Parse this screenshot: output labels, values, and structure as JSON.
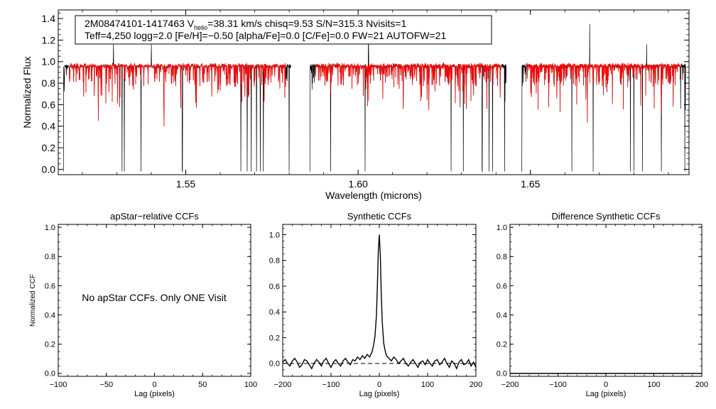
{
  "chart_data": [
    {
      "id": "spectrum",
      "type": "line",
      "info_line1_parts": [
        "2M08474101-1417463  V",
        "helio",
        "=38.31 km/s  chisq=9.53  S/N=315.3  Nvisits=1"
      ],
      "info_line2": "Teff=4,250 logg=2.0 [Fe/H]=−0.50 [alpha/Fe]=0.0 [C/Fe]=0.0 FW=21 AUTOFW=21",
      "xlabel": "Wavelength (microns)",
      "ylabel": "Normalized Flux",
      "xlim": [
        1.513,
        1.696
      ],
      "ylim": [
        -0.05,
        1.48
      ],
      "xticks": [
        1.55,
        1.6,
        1.65
      ],
      "xtick_labels": [
        "1.55",
        "1.60",
        "1.65"
      ],
      "yticks": [
        0.0,
        0.2,
        0.4,
        0.6,
        0.8,
        1.0,
        1.2,
        1.4
      ],
      "ytick_labels": [
        "0.0",
        "0.2",
        "0.4",
        "0.6",
        "0.8",
        "1.0",
        "1.2",
        "1.4"
      ],
      "chip_ranges": [
        [
          1.5145,
          1.5805
        ],
        [
          1.586,
          1.643
        ],
        [
          1.6475,
          1.695
        ]
      ],
      "series": [
        {
          "name": "observed",
          "color": "#000000"
        },
        {
          "name": "model",
          "color": "#ff0000"
        }
      ],
      "spikes_down": [
        1.5145,
        1.5315,
        1.5322,
        1.537,
        1.549,
        1.566,
        1.5678,
        1.569,
        1.5705,
        1.5716,
        1.5725,
        1.58,
        1.586,
        1.592,
        1.602,
        1.627,
        1.6305,
        1.636,
        1.638,
        1.639,
        1.6425,
        1.6475,
        1.662,
        1.6682,
        1.679,
        1.68,
        1.6825,
        1.688,
        1.6948
      ],
      "spikes_up": [
        1.529,
        1.54,
        1.603,
        1.6672,
        1.6837
      ]
    },
    {
      "id": "apstar-ccf",
      "type": "line",
      "title": "apStar−relative CCFs",
      "xlabel": "Lag (pixels)",
      "ylabel": "Normalized CCF",
      "xlim": [
        -100,
        100
      ],
      "ylim": [
        -0.02,
        1.02
      ],
      "xticks": [
        -100,
        -50,
        0,
        50,
        100
      ],
      "xtick_labels": [
        "−100",
        "−50",
        "0",
        "50",
        "100"
      ],
      "yticks": [
        0.0,
        0.2,
        0.4,
        0.6,
        0.8,
        1.0
      ],
      "ytick_labels": [
        "0.0",
        "0.2",
        "0.4",
        "0.6",
        "0.8",
        "1.0"
      ],
      "annotation": "No apStar CCFs.  Only ONE Visit",
      "series": []
    },
    {
      "id": "synthetic-ccf",
      "type": "line",
      "title": "Synthetic CCFs",
      "xlabel": "Lag (pixels)",
      "ylabel": "",
      "xlim": [
        -200,
        200
      ],
      "ylim": [
        -0.1,
        1.08
      ],
      "xticks": [
        -200,
        -100,
        0,
        100,
        200
      ],
      "xtick_labels": [
        "−200",
        "−100",
        "0",
        "100",
        "200"
      ],
      "yticks": [
        0.0,
        0.2,
        0.4,
        0.6,
        0.8,
        1.0
      ],
      "ytick_labels": [
        "0.0",
        "0.2",
        "0.4",
        "0.6",
        "0.8",
        "1.0"
      ],
      "reference_line_y": 0.0,
      "series": [
        {
          "name": "synthetic-ccf",
          "color": "#000000",
          "x": [
            -200,
            -195,
            -190,
            -185,
            -180,
            -175,
            -170,
            -165,
            -160,
            -155,
            -150,
            -145,
            -140,
            -135,
            -130,
            -125,
            -120,
            -115,
            -110,
            -105,
            -100,
            -95,
            -90,
            -85,
            -80,
            -75,
            -70,
            -65,
            -60,
            -55,
            -50,
            -45,
            -40,
            -35,
            -30,
            -25,
            -20,
            -15,
            -12,
            -9,
            -6,
            -4,
            -2,
            0,
            2,
            4,
            6,
            9,
            12,
            15,
            20,
            25,
            30,
            35,
            40,
            45,
            50,
            55,
            60,
            65,
            70,
            75,
            80,
            85,
            90,
            95,
            100,
            105,
            110,
            115,
            120,
            125,
            130,
            135,
            140,
            145,
            150,
            155,
            160,
            165,
            170,
            175,
            180,
            185,
            190,
            195,
            200
          ],
          "y": [
            0.01,
            0.03,
            0.0,
            -0.02,
            0.02,
            0.04,
            0.01,
            -0.03,
            -0.01,
            0.03,
            0.02,
            -0.01,
            -0.04,
            0.0,
            0.03,
            0.01,
            -0.02,
            0.02,
            0.04,
            0.0,
            -0.03,
            0.01,
            0.03,
            0.0,
            -0.02,
            0.02,
            0.04,
            0.01,
            -0.01,
            0.03,
            0.02,
            0.05,
            0.03,
            0.06,
            0.04,
            0.07,
            0.05,
            0.09,
            0.14,
            0.21,
            0.37,
            0.6,
            0.88,
            1.0,
            0.85,
            0.55,
            0.33,
            0.16,
            0.1,
            0.06,
            0.04,
            0.02,
            0.05,
            0.03,
            0.0,
            0.02,
            0.04,
            0.0,
            -0.02,
            0.01,
            0.03,
            0.0,
            -0.03,
            0.01,
            0.02,
            -0.01,
            0.03,
            0.0,
            -0.02,
            0.02,
            0.03,
            -0.01,
            0.01,
            0.04,
            0.0,
            -0.03,
            0.02,
            0.0,
            -0.04,
            0.01,
            0.03,
            -0.01,
            0.0,
            0.03,
            -0.02,
            0.01,
            -0.03
          ]
        }
      ]
    },
    {
      "id": "difference-ccf",
      "type": "line",
      "title": "Difference Synthetic CCFs",
      "xlabel": "Lag (pixels)",
      "ylabel": "",
      "xlim": [
        -200,
        200
      ],
      "ylim": [
        -0.02,
        1.02
      ],
      "xticks": [
        -200,
        -100,
        0,
        100,
        200
      ],
      "xtick_labels": [
        "−200",
        "−100",
        "0",
        "100",
        "200"
      ],
      "yticks": [
        0.0,
        0.2,
        0.4,
        0.6,
        0.8,
        1.0
      ],
      "ytick_labels": [
        "0.0",
        "0.2",
        "0.4",
        "0.6",
        "0.8",
        "1.0"
      ],
      "series": [
        {
          "name": "difference-ccf",
          "color": "#000000",
          "x": [
            -200,
            200
          ],
          "y": [
            0.0,
            0.0
          ]
        }
      ]
    }
  ]
}
